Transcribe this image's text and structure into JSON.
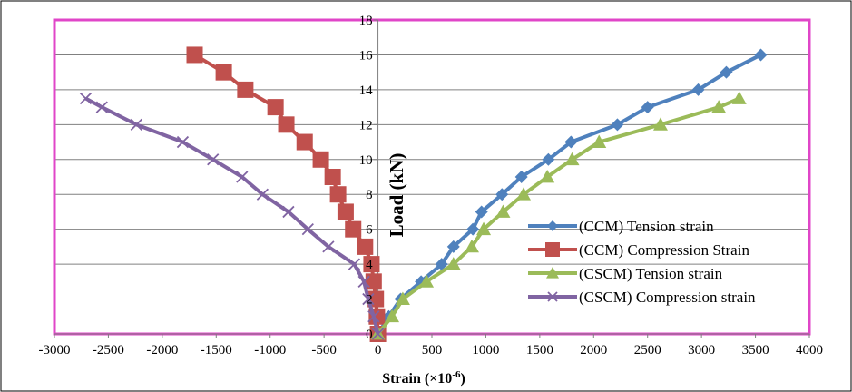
{
  "chart_data": {
    "type": "line",
    "title": "",
    "xlabel": "Strain (×10",
    "xlabel_sup": "-6",
    "xlabel_close": ")",
    "ylabel": "Load (kN)",
    "xlim": [
      -3000,
      4000
    ],
    "ylim": [
      0,
      18
    ],
    "xticks": [
      -3000,
      -2500,
      -2000,
      -1500,
      -1000,
      -500,
      0,
      500,
      1000,
      1500,
      2000,
      2500,
      3000,
      3500,
      4000
    ],
    "yticks": [
      0,
      2,
      4,
      6,
      8,
      10,
      12,
      14,
      16,
      18
    ],
    "grid": "horizontal",
    "legend_position": "right",
    "series": [
      {
        "name": "(CCM) Tension strain",
        "color": "#4f81bd",
        "marker": "diamond",
        "points": [
          [
            0,
            0
          ],
          [
            100,
            1
          ],
          [
            210,
            2
          ],
          [
            400,
            3
          ],
          [
            590,
            4
          ],
          [
            700,
            5
          ],
          [
            880,
            6
          ],
          [
            960,
            7
          ],
          [
            1150,
            8
          ],
          [
            1330,
            9
          ],
          [
            1580,
            10
          ],
          [
            1790,
            11
          ],
          [
            2220,
            12
          ],
          [
            2500,
            13
          ],
          [
            2970,
            14
          ],
          [
            3230,
            15
          ],
          [
            3550,
            16
          ]
        ]
      },
      {
        "name": "(CCM) Compression Strain",
        "color": "#c0504d",
        "marker": "square",
        "points": [
          [
            0,
            0
          ],
          [
            -10,
            1
          ],
          [
            -20,
            2
          ],
          [
            -40,
            3
          ],
          [
            -60,
            4
          ],
          [
            -120,
            5
          ],
          [
            -230,
            6
          ],
          [
            -300,
            7
          ],
          [
            -370,
            8
          ],
          [
            -420,
            9
          ],
          [
            -530,
            10
          ],
          [
            -680,
            11
          ],
          [
            -850,
            12
          ],
          [
            -950,
            13
          ],
          [
            -1230,
            14
          ],
          [
            -1430,
            15
          ],
          [
            -1700,
            16
          ]
        ]
      },
      {
        "name": "(CSCM) Tension strain",
        "color": "#9bbb59",
        "marker": "triangle",
        "points": [
          [
            0,
            0
          ],
          [
            130,
            1
          ],
          [
            230,
            2
          ],
          [
            450,
            3
          ],
          [
            700,
            4
          ],
          [
            870,
            5
          ],
          [
            980,
            6
          ],
          [
            1160,
            7
          ],
          [
            1350,
            8
          ],
          [
            1570,
            9
          ],
          [
            1800,
            10
          ],
          [
            2050,
            11
          ],
          [
            2620,
            12
          ],
          [
            3160,
            13
          ],
          [
            3350,
            13.5
          ]
        ]
      },
      {
        "name": "(CSCM) Compression strain",
        "color": "#8064a2",
        "marker": "x",
        "points": [
          [
            0,
            0
          ],
          [
            -40,
            1
          ],
          [
            -90,
            2
          ],
          [
            -130,
            3
          ],
          [
            -220,
            4
          ],
          [
            -460,
            5
          ],
          [
            -650,
            6
          ],
          [
            -830,
            7
          ],
          [
            -1070,
            8
          ],
          [
            -1260,
            9
          ],
          [
            -1530,
            10
          ],
          [
            -1810,
            11
          ],
          [
            -2240,
            12
          ],
          [
            -2560,
            13
          ],
          [
            -2710,
            13.5
          ]
        ]
      }
    ]
  },
  "colors": {
    "plot_border": "#e046c8",
    "axis": "#7f7f7f",
    "gridline": "#808080",
    "outer_border": "#000000"
  }
}
